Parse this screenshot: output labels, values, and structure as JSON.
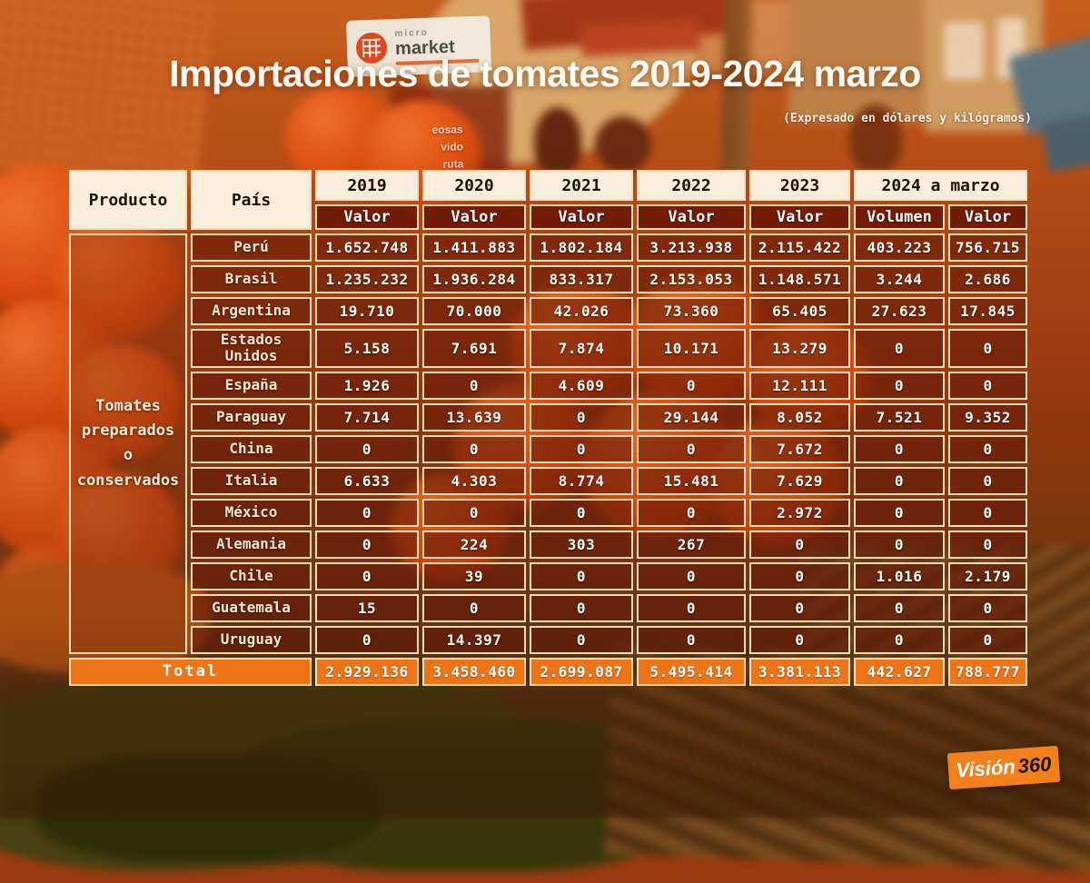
{
  "header": {
    "title": "Importaciones de tomates 2019-2024 marzo",
    "subtitle": "(Expresado en dólares y kilógramos)"
  },
  "background": {
    "sign": {
      "top_word": "micro",
      "bottom_word": "market"
    },
    "menu_fragments": [
      "eosas",
      "vido",
      "ruta"
    ]
  },
  "logo": {
    "name_part": "Visión",
    "number_part": "360"
  },
  "colors": {
    "accent_orange": "#ee7517",
    "header_cream": "#f8eedb",
    "border_cream": "#f2ddba",
    "cell_dark": "rgba(99,25,8,0.60)",
    "subheader_dark": "rgba(97,17,4,0.78)",
    "title_white": "#fdfaf4"
  },
  "chart_data": {
    "type": "table",
    "title": "Importaciones de tomates 2019-2024 marzo",
    "subtitle": "(Expresado en dólares y kilógramos)",
    "product_label": "Producto",
    "country_label": "País",
    "product": "Tomates preparados o conservados",
    "year_headers": [
      {
        "label": "2019",
        "colspan": 1
      },
      {
        "label": "2020",
        "colspan": 1
      },
      {
        "label": "2021",
        "colspan": 1
      },
      {
        "label": "2022",
        "colspan": 1
      },
      {
        "label": "2023",
        "colspan": 1
      },
      {
        "label": "2024 a marzo",
        "colspan": 2
      }
    ],
    "sub_headers": [
      "Valor",
      "Valor",
      "Valor",
      "Valor",
      "Valor",
      "Volumen",
      "Valor"
    ],
    "rows": [
      {
        "country": "Perú",
        "values": [
          "1.652.748",
          "1.411.883",
          "1.802.184",
          "3.213.938",
          "2.115.422",
          "403.223",
          "756.715"
        ]
      },
      {
        "country": "Brasil",
        "values": [
          "1.235.232",
          "1.936.284",
          "833.317",
          "2.153.053",
          "1.148.571",
          "3.244",
          "2.686"
        ]
      },
      {
        "country": "Argentina",
        "values": [
          "19.710",
          "70.000",
          "42.026",
          "73.360",
          "65.405",
          "27.623",
          "17.845"
        ]
      },
      {
        "country": "Estados Unidos",
        "values": [
          "5.158",
          "7.691",
          "7.874",
          "10.171",
          "13.279",
          "0",
          "0"
        ]
      },
      {
        "country": "España",
        "values": [
          "1.926",
          "0",
          "4.609",
          "0",
          "12.111",
          "0",
          "0"
        ]
      },
      {
        "country": "Paraguay",
        "values": [
          "7.714",
          "13.639",
          "0",
          "29.144",
          "8.052",
          "7.521",
          "9.352"
        ]
      },
      {
        "country": "China",
        "values": [
          "0",
          "0",
          "0",
          "0",
          "7.672",
          "0",
          "0"
        ]
      },
      {
        "country": "Italia",
        "values": [
          "6.633",
          "4.303",
          "8.774",
          "15.481",
          "7.629",
          "0",
          "0"
        ]
      },
      {
        "country": "México",
        "values": [
          "0",
          "0",
          "0",
          "0",
          "2.972",
          "0",
          "0"
        ]
      },
      {
        "country": "Alemania",
        "values": [
          "0",
          "224",
          "303",
          "267",
          "0",
          "0",
          "0"
        ]
      },
      {
        "country": "Chile",
        "values": [
          "0",
          "39",
          "0",
          "0",
          "0",
          "1.016",
          "2.179"
        ]
      },
      {
        "country": "Guatemala",
        "values": [
          "15",
          "0",
          "0",
          "0",
          "0",
          "0",
          "0"
        ]
      },
      {
        "country": "Uruguay",
        "values": [
          "0",
          "14.397",
          "0",
          "0",
          "0",
          "0",
          "0"
        ]
      }
    ],
    "total": {
      "label": "Total",
      "values": [
        "2.929.136",
        "3.458.460",
        "2.699.087",
        "5.495.414",
        "3.381.113",
        "442.627",
        "788.777"
      ]
    }
  }
}
